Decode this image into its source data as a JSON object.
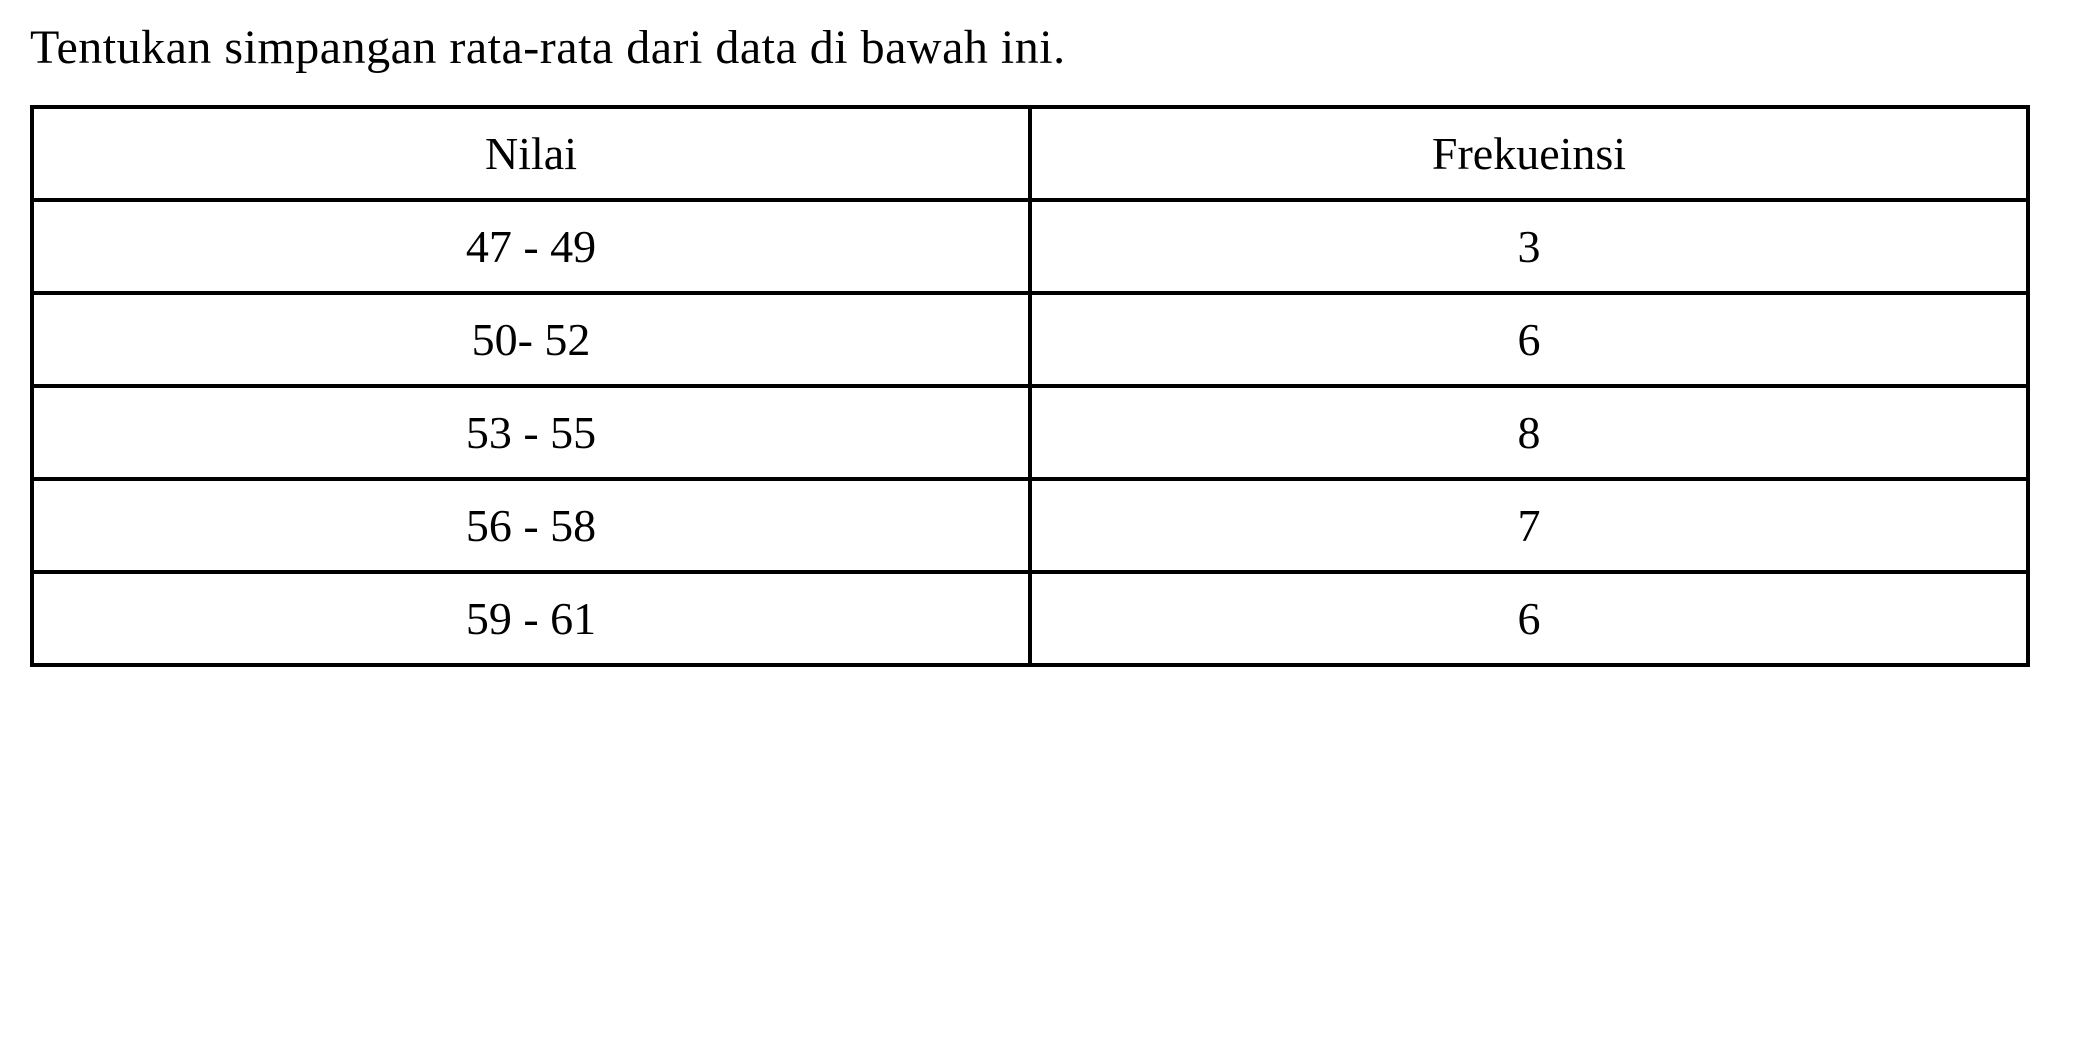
{
  "question": {
    "text": "Tentukan simpangan rata-rata dari data di bawah ini."
  },
  "table": {
    "columns": [
      {
        "header": "Nilai",
        "width_pct": 50,
        "align": "center"
      },
      {
        "header": "Frekueinsi",
        "width_pct": 50,
        "align": "center"
      }
    ],
    "rows": [
      [
        "47 - 49",
        "3"
      ],
      [
        "50- 52",
        "6"
      ],
      [
        "53 - 55",
        "8"
      ],
      [
        "56 - 58",
        "7"
      ],
      [
        "59 - 61",
        "6"
      ]
    ],
    "styling": {
      "border_color": "#000000",
      "border_width": 4,
      "background_color": "#ffffff",
      "text_color": "#000000",
      "header_fontsize": 46,
      "cell_fontsize": 46,
      "font_family": "Times New Roman"
    }
  },
  "page": {
    "background_color": "#ffffff",
    "question_fontsize": 48,
    "question_color": "#000000"
  }
}
